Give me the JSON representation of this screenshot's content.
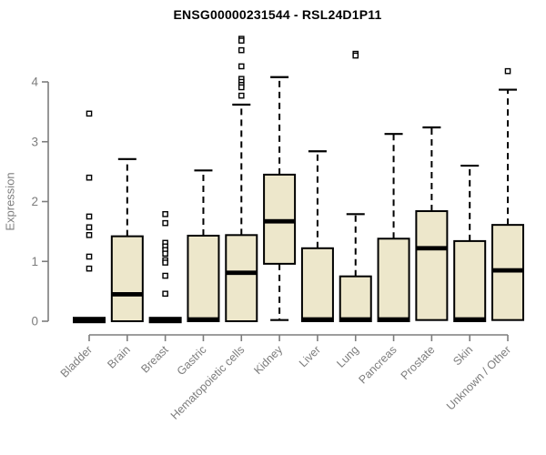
{
  "title": "ENSG00000231544 - RSL24D1P11",
  "chart_data": {
    "type": "boxplot",
    "title": "ENSG00000231544 - RSL24D1P11",
    "xlabel": "",
    "ylabel": "Expression",
    "yticks": [
      0,
      1,
      2,
      3,
      4
    ],
    "ylim": [
      0,
      4.75
    ],
    "grid": false,
    "legend": "none",
    "box_fill_color": "#EDE7CB",
    "box_stroke_color": "#000000",
    "axis_color": "#7d7d7d",
    "title_color": "#000000",
    "categories": [
      "Bladder",
      "Brain",
      "Breast",
      "Gastric",
      "Hematopoietic cells",
      "Kidney",
      "Liver",
      "Lung",
      "Pancreas",
      "Prostate",
      "Skin",
      "Unknown / Other"
    ],
    "series": [
      {
        "label": "Bladder",
        "q1": 0,
        "median": 0.02,
        "q3": 0.03,
        "whisker_low": 0,
        "whisker_high": 0.03,
        "outliers": [
          3.47,
          2.4,
          1.75,
          1.57,
          1.44,
          1.08,
          0.88
        ]
      },
      {
        "label": "Brain",
        "q1": 0,
        "median": 0.45,
        "q3": 1.42,
        "whisker_low": 0,
        "whisker_high": 2.71,
        "outliers": []
      },
      {
        "label": "Breast",
        "q1": 0,
        "median": 0.02,
        "q3": 0.03,
        "whisker_low": 0,
        "whisker_high": 0.03,
        "outliers": [
          1.79,
          1.64,
          1.31,
          1.25,
          1.19,
          1.13,
          1.02,
          0.98,
          0.76,
          0.46
        ]
      },
      {
        "label": "Gastric",
        "q1": 0,
        "median": 0.03,
        "q3": 1.43,
        "whisker_low": 0,
        "whisker_high": 2.52,
        "outliers": []
      },
      {
        "label": "Hematopoietic cells",
        "q1": 0,
        "median": 0.81,
        "q3": 1.44,
        "whisker_low": 0,
        "whisker_high": 3.62,
        "outliers": [
          4.72,
          4.69,
          4.53,
          4.26,
          4.05,
          4.0,
          3.95,
          3.91,
          3.77
        ]
      },
      {
        "label": "Kidney",
        "q1": 0.96,
        "median": 1.67,
        "q3": 2.45,
        "whisker_low": 0.02,
        "whisker_high": 4.08,
        "outliers": []
      },
      {
        "label": "Liver",
        "q1": 0,
        "median": 0.03,
        "q3": 1.22,
        "whisker_low": 0,
        "whisker_high": 2.84,
        "outliers": []
      },
      {
        "label": "Lung",
        "q1": 0,
        "median": 0.03,
        "q3": 0.75,
        "whisker_low": 0,
        "whisker_high": 1.79,
        "outliers": [
          4.47,
          4.44
        ]
      },
      {
        "label": "Pancreas",
        "q1": 0,
        "median": 0.03,
        "q3": 1.38,
        "whisker_low": 0,
        "whisker_high": 3.13,
        "outliers": []
      },
      {
        "label": "Prostate",
        "q1": 0.02,
        "median": 1.22,
        "q3": 1.84,
        "whisker_low": 0.02,
        "whisker_high": 3.24,
        "outliers": []
      },
      {
        "label": "Skin",
        "q1": 0,
        "median": 0.03,
        "q3": 1.34,
        "whisker_low": 0,
        "whisker_high": 2.6,
        "outliers": []
      },
      {
        "label": "Unknown / Other",
        "q1": 0.02,
        "median": 0.85,
        "q3": 1.61,
        "whisker_low": 0.02,
        "whisker_high": 3.87,
        "outliers": [
          4.18
        ]
      }
    ]
  }
}
